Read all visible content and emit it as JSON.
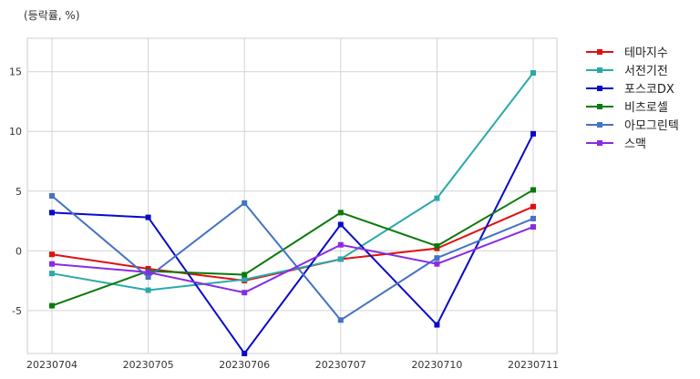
{
  "unit_label": "(등락률, %)",
  "chart_data": {
    "type": "line",
    "title": "",
    "xlabel": "",
    "ylabel": "",
    "x": [
      "20230704",
      "20230705",
      "20230706",
      "20230707",
      "20230710",
      "20230711"
    ],
    "ylim": [
      -8.6,
      17.8
    ],
    "yticks": [
      -5,
      0,
      5,
      10,
      15
    ],
    "grid": true,
    "legend_position": "outside-right-top",
    "series": [
      {
        "name": "테마지수",
        "color": "#e01010",
        "values": [
          -0.3,
          -1.5,
          -2.5,
          -0.7,
          0.2,
          3.7
        ]
      },
      {
        "name": "서전기전",
        "color": "#2aa9a9",
        "values": [
          -1.9,
          -3.3,
          -2.4,
          -0.7,
          4.4,
          14.9
        ]
      },
      {
        "name": "포스코DX",
        "color": "#0a0ac8",
        "values": [
          3.2,
          2.8,
          -8.6,
          2.2,
          -6.2,
          9.8
        ]
      },
      {
        "name": "비츠로셀",
        "color": "#0a7a0a",
        "values": [
          -4.6,
          -1.7,
          -2.0,
          3.2,
          0.4,
          5.1
        ]
      },
      {
        "name": "아모그린텍",
        "color": "#4472c4",
        "values": [
          4.6,
          -2.2,
          4.0,
          -5.8,
          -0.6,
          2.7
        ]
      },
      {
        "name": "스맥",
        "color": "#8a2be2",
        "values": [
          -1.1,
          -1.8,
          -3.5,
          0.5,
          -1.1,
          2.0
        ]
      }
    ]
  }
}
